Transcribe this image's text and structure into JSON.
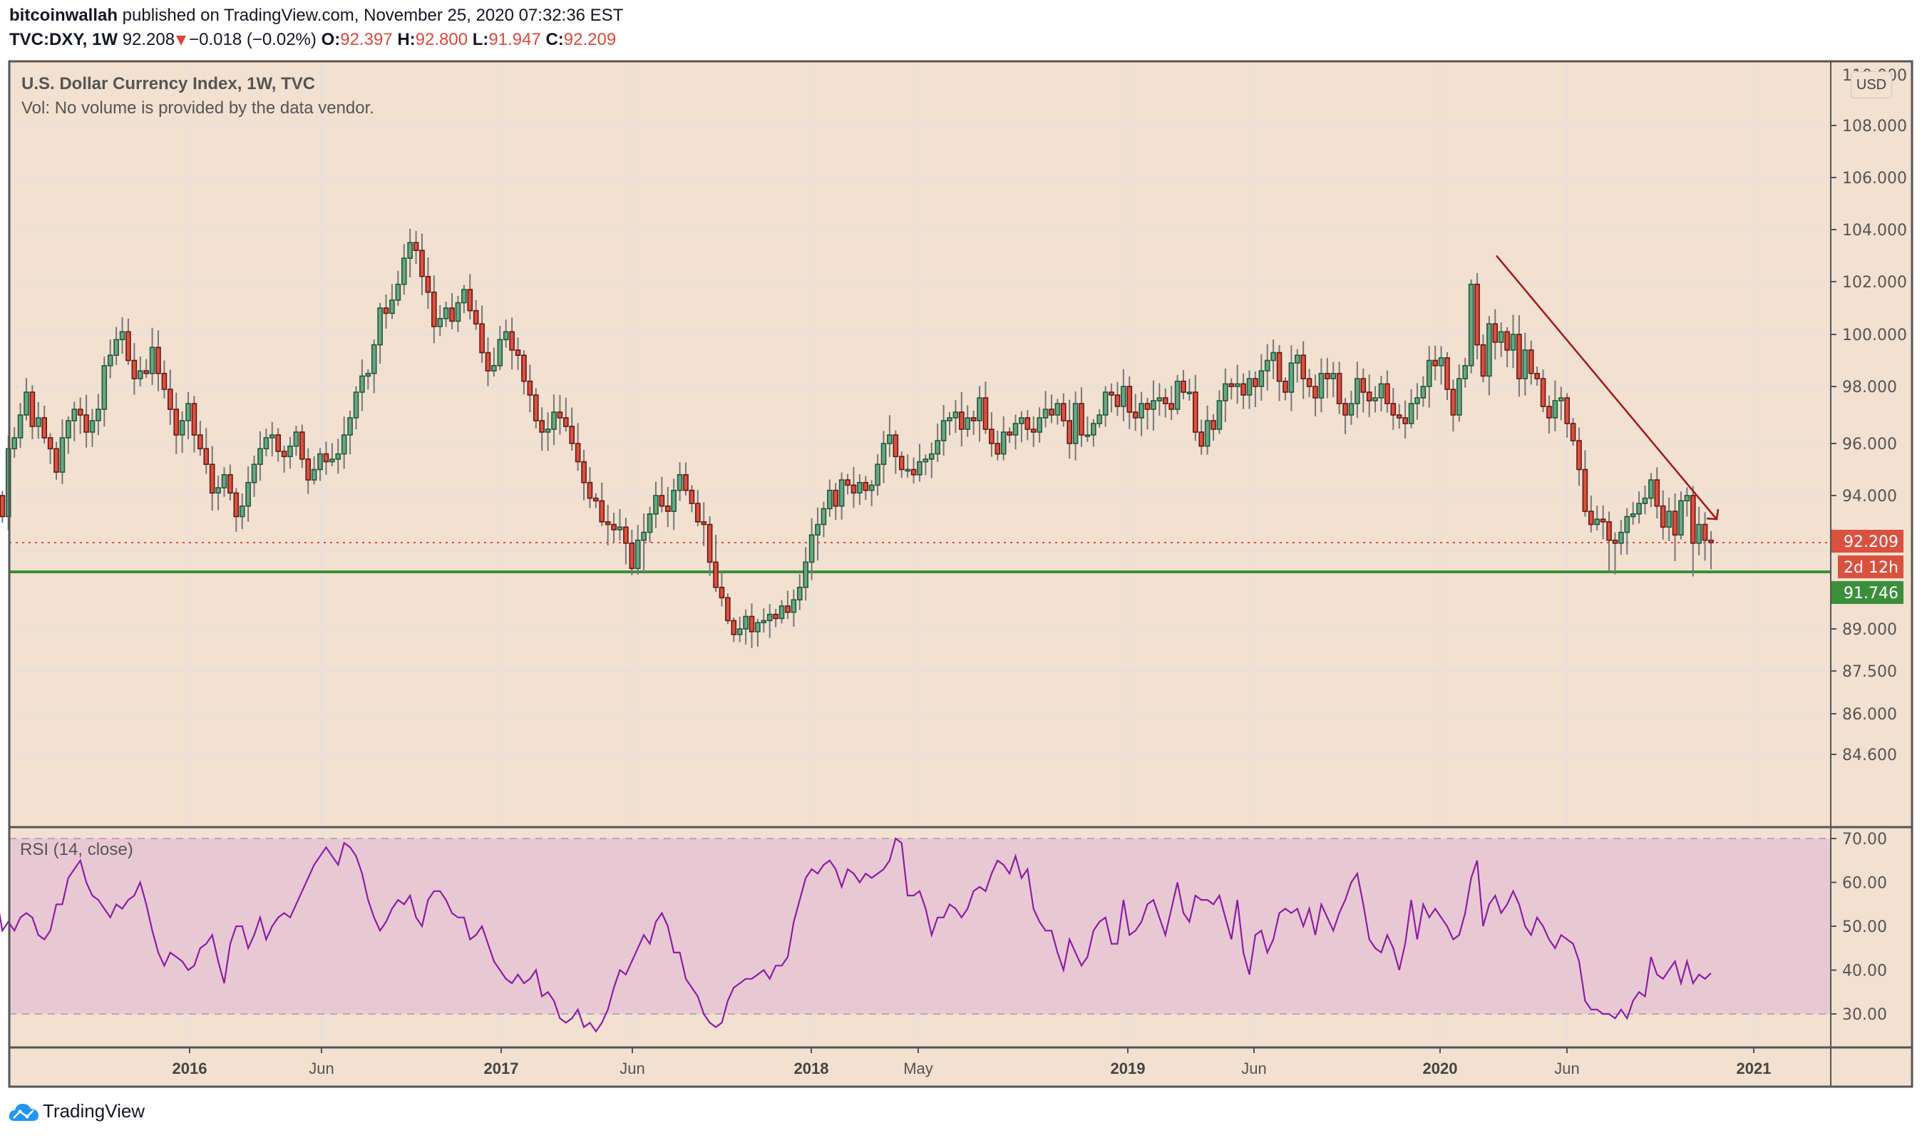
{
  "header": {
    "author": "bitcoinwallah",
    "published_text": " published on TradingView.com, November 25, 2020 07:32:36 EST",
    "symbol": "TVC:DXY, 1W",
    "last_price": "92.208",
    "change": "−0.018 (−0.02%)",
    "o_label": "O:",
    "o_value": "92.397",
    "h_label": "H:",
    "h_value": "92.800",
    "l_label": "L:",
    "l_value": "91.947",
    "c_label": "C:",
    "c_value": "92.209"
  },
  "legend": {
    "title": "U.S. Dollar Currency Index, 1W, TVC",
    "volume_note": "Vol: No volume is provided by the data vendor.",
    "rsi_title": "RSI (14, close)"
  },
  "currency_button": "USD",
  "footer": {
    "brand": "TradingView"
  },
  "colors": {
    "background": "#f2e0d0",
    "rsi_band": "#e8c9d3",
    "up_body": "#6aa584",
    "up_border": "#1e5a3a",
    "down_body": "#d95240",
    "down_border": "#6b1512",
    "wick": "#777777",
    "trendline": "#a01818",
    "support_line": "#3b8f3b",
    "rsi_line": "#8e1ca6",
    "price_label_red": "#d95240",
    "price_label_green": "#3b8f3b",
    "grid": "#e6e0e0",
    "axis_text": "#555555",
    "frame": "#555555"
  },
  "chart_data": [
    {
      "type": "candlestick",
      "title": "U.S. Dollar Currency Index, 1W, TVC",
      "symbol": "TVC:DXY",
      "interval": "1W",
      "xlabel": "",
      "ylabel": "USD",
      "x_ticks": [
        "2016",
        "Jun",
        "2017",
        "Jun",
        "2018",
        "May",
        "2019",
        "Jun",
        "2020",
        "Jun",
        "2021"
      ],
      "y_ticks": [
        "108.000",
        "106.000",
        "104.000",
        "102.000",
        "100.000",
        "98.000",
        "96.000",
        "94.000",
        "89.000",
        "87.500",
        "86.000",
        "84.600"
      ],
      "ylim": [
        84.0,
        110.0
      ],
      "price_labels": [
        {
          "value": "92.209",
          "color": "#d95240"
        },
        {
          "value": "2d 12h",
          "color": "#d95240"
        },
        {
          "value": "91.746",
          "color": "#3b8f3b"
        }
      ],
      "horizontal_lines": [
        {
          "name": "support",
          "value": 91.746,
          "style": "solid",
          "color": "#3b8f3b"
        },
        {
          "name": "last_price",
          "value": 92.209,
          "style": "dotted",
          "color": "#d95240"
        }
      ],
      "trendline": {
        "from": {
          "date": "2020-03-16",
          "price": 103.0
        },
        "to": {
          "date": "2020-11-23",
          "price": 93.1
        },
        "arrow": true,
        "color": "#a01818"
      },
      "start_date": "2015-08-10",
      "closes": [
        95.5,
        94.0,
        93.2,
        95.8,
        96.2,
        97.0,
        97.8,
        96.6,
        96.9,
        96.2,
        95.8,
        94.9,
        96.2,
        96.8,
        97.2,
        97.0,
        96.4,
        96.8,
        97.2,
        98.8,
        99.2,
        99.8,
        100.1,
        99.0,
        98.3,
        98.6,
        98.5,
        99.5,
        98.5,
        97.9,
        97.2,
        96.3,
        96.8,
        97.4,
        96.3,
        95.8,
        95.2,
        94.1,
        94.3,
        94.8,
        94.1,
        93.2,
        93.6,
        94.5,
        95.2,
        95.8,
        96.2,
        96.3,
        95.7,
        95.5,
        95.9,
        96.4,
        95.4,
        94.6,
        95.0,
        95.6,
        95.3,
        95.4,
        95.6,
        96.3,
        96.9,
        97.8,
        98.4,
        98.5,
        99.6,
        101.0,
        100.8,
        101.3,
        101.9,
        102.9,
        103.5,
        103.2,
        102.2,
        101.6,
        100.3,
        100.6,
        101.0,
        100.5,
        101.2,
        101.7,
        100.9,
        100.4,
        99.3,
        98.6,
        98.8,
        99.8,
        100.1,
        99.4,
        99.2,
        98.2,
        97.7,
        96.8,
        96.4,
        96.5,
        97.1,
        96.9,
        96.6,
        96.0,
        95.3,
        94.5,
        93.9,
        93.8,
        93.0,
        92.9,
        92.7,
        92.8,
        92.2,
        91.8,
        92.3,
        92.6,
        93.3,
        94.0,
        93.6,
        93.4,
        94.2,
        94.8,
        94.2,
        93.7,
        93.0,
        92.9,
        91.9,
        91.0,
        90.5,
        89.4,
        88.8,
        89.0,
        89.6,
        88.9,
        89.3,
        89.4,
        89.7,
        89.5,
        90.1,
        89.8,
        90.4,
        91.0,
        91.9,
        92.5,
        92.9,
        93.5,
        94.2,
        93.6,
        94.6,
        94.4,
        94.1,
        94.5,
        94.2,
        94.4,
        95.2,
        96.0,
        96.3,
        95.5,
        95.0,
        95.0,
        94.8,
        95.3,
        95.4,
        95.6,
        96.1,
        96.8,
        96.9,
        97.1,
        96.5,
        96.9,
        96.8,
        97.6,
        96.5,
        96.0,
        95.6,
        96.4,
        96.3,
        96.7,
        96.9,
        96.5,
        96.4,
        96.9,
        97.2,
        97.0,
        97.4,
        96.8,
        96.0,
        97.4,
        96.3,
        96.3,
        96.7,
        97.0,
        97.8,
        97.7,
        97.3,
        98.0,
        97.1,
        96.9,
        97.4,
        97.2,
        97.5,
        97.6,
        97.4,
        97.2,
        98.2,
        97.8,
        97.8,
        96.4,
        95.9,
        96.8,
        96.5,
        97.5,
        98.1,
        98.0,
        98.1,
        97.7,
        98.3,
        98.0,
        98.6,
        99.0,
        99.3,
        98.2,
        97.8,
        98.9,
        99.2,
        98.3,
        98.0,
        97.6,
        98.5,
        98.3,
        98.5,
        97.4,
        97.0,
        97.4,
        98.3,
        97.8,
        97.5,
        97.6,
        98.1,
        97.4,
        97.0,
        96.9,
        96.7,
        97.4,
        97.6,
        98.0,
        99.0,
        98.8,
        99.1,
        97.9,
        97.0,
        98.3,
        98.8,
        101.9,
        99.6,
        98.4,
        100.4,
        99.7,
        100.1,
        99.4,
        100.0,
        98.3,
        99.4,
        98.5,
        98.3,
        97.3,
        96.9,
        97.5,
        97.6,
        96.7,
        96.1,
        95.0,
        93.4,
        92.9,
        93.1,
        93.0,
        92.3,
        92.2,
        92.6,
        93.2,
        93.3,
        93.7,
        93.9,
        94.6,
        93.6,
        92.8,
        93.4,
        92.5,
        93.8,
        94.0,
        92.2,
        92.9,
        92.3,
        92.21
      ],
      "closes_note": "weekly closes estimated from chart pixels"
    },
    {
      "type": "line",
      "title": "RSI (14, close)",
      "y_ticks": [
        "70.00",
        "60.00",
        "50.00",
        "40.00",
        "30.00"
      ],
      "ylim": [
        25,
        72
      ],
      "band": [
        30,
        70
      ],
      "x_start_date": "2015-08-10",
      "values": [
        52,
        49,
        54,
        56,
        56,
        61,
        59,
        59,
        60,
        57,
        49,
        51,
        49,
        52,
        53,
        52,
        48,
        47,
        49,
        55,
        55,
        61,
        63,
        65,
        60,
        57,
        56,
        54,
        52,
        55,
        54,
        56,
        57,
        60,
        55,
        49,
        44,
        41,
        44,
        43,
        42,
        40,
        41,
        45,
        46,
        48,
        42,
        37,
        46,
        50,
        50,
        45,
        48,
        52,
        47,
        50,
        52,
        53,
        52,
        55,
        58,
        61,
        64,
        66,
        68,
        66,
        64,
        69,
        68,
        66,
        62,
        56,
        52,
        49,
        51,
        54,
        56,
        55,
        57,
        52,
        50,
        56,
        58,
        58,
        56,
        53,
        52,
        52,
        47,
        48,
        50,
        46,
        42,
        40,
        38,
        37,
        39,
        37,
        38,
        40,
        34,
        35,
        33,
        29,
        28,
        29,
        31,
        27,
        28,
        26,
        28,
        31,
        36,
        40,
        39,
        42,
        45,
        48,
        46,
        51,
        53,
        50,
        44,
        44,
        38,
        36,
        34,
        30,
        28,
        27,
        28,
        33,
        36,
        37,
        38,
        38,
        39,
        40,
        38,
        41,
        41,
        43,
        51,
        56,
        61,
        63,
        62,
        64,
        65,
        63,
        59,
        63,
        62,
        60,
        62,
        61,
        62,
        63,
        65,
        70,
        69,
        57,
        57,
        58,
        54,
        48,
        52,
        52,
        55,
        54,
        52,
        54,
        58,
        59,
        58,
        62,
        65,
        64,
        62,
        66,
        61,
        63,
        54,
        51,
        49,
        49,
        44,
        40,
        47,
        44,
        41,
        43,
        49,
        51,
        52,
        46,
        46,
        56,
        48,
        49,
        51,
        55,
        56,
        52,
        48,
        54,
        60,
        53,
        51,
        57,
        56,
        56,
        55,
        57,
        52,
        47,
        56,
        44,
        39,
        48,
        49,
        44,
        47,
        53,
        54,
        53,
        54,
        50,
        54,
        48,
        55,
        52,
        49,
        53,
        56,
        60,
        62,
        55,
        47,
        45,
        44,
        48,
        45,
        40,
        46,
        56,
        47,
        55,
        52,
        54,
        52,
        50,
        47,
        48,
        53,
        61,
        65,
        50,
        55,
        57,
        53,
        55,
        58,
        55,
        50,
        48,
        52,
        50,
        47,
        45,
        48,
        47,
        46,
        42,
        33,
        31,
        31,
        30,
        30,
        29,
        31,
        29,
        33,
        35,
        34,
        43,
        39,
        38,
        40,
        42,
        37,
        42,
        37,
        39,
        38,
        39.3
      ]
    }
  ]
}
